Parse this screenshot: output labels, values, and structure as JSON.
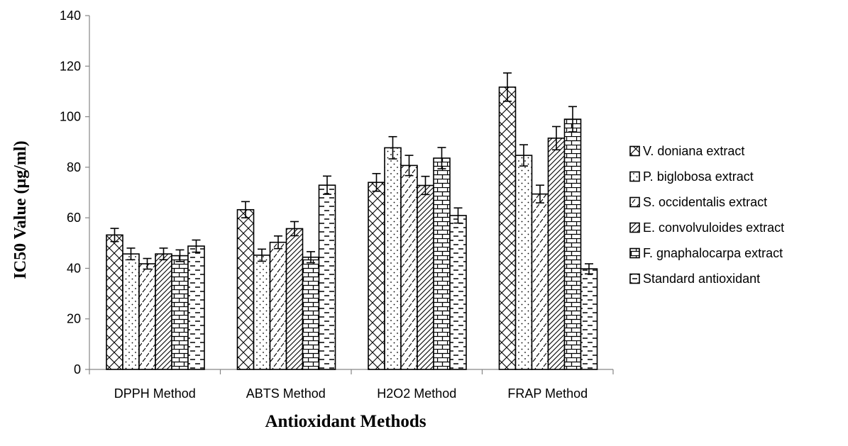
{
  "chart_data": {
    "type": "bar",
    "title": "",
    "xlabel": "Antioxidant Methods",
    "ylabel": "IC50 Value (µg/ml)",
    "ylim": [
      0,
      140
    ],
    "yticks": [
      0,
      20,
      40,
      60,
      80,
      100,
      120,
      140
    ],
    "categories": [
      "DPPH Method",
      "ABTS Method",
      "H2O2  Method",
      "FRAP Method"
    ],
    "series": [
      {
        "name": "V. doniana extract",
        "pattern": "crosshatch",
        "values": [
          53.2,
          63.2,
          74.0,
          111.7
        ],
        "errors": [
          2.6,
          3.2,
          3.5,
          5.6
        ]
      },
      {
        "name": "P. biglobosa extract",
        "pattern": "dots",
        "values": [
          45.7,
          45.2,
          87.7,
          84.7
        ],
        "errors": [
          2.3,
          2.4,
          4.4,
          4.2
        ]
      },
      {
        "name": "S. occidentalis extract",
        "pattern": "dashed-diagonal",
        "values": [
          41.8,
          50.3,
          80.7,
          69.4
        ],
        "errors": [
          2.1,
          2.5,
          4.0,
          3.5
        ]
      },
      {
        "name": "E. convolvuloides extract",
        "pattern": "diagonal",
        "values": [
          45.7,
          55.7,
          72.8,
          91.5
        ],
        "errors": [
          2.3,
          2.8,
          3.6,
          4.6
        ]
      },
      {
        "name": "F. gnaphalocarpa extract",
        "pattern": "brick",
        "values": [
          45.0,
          44.4,
          83.6,
          99.0
        ],
        "errors": [
          2.3,
          2.2,
          4.2,
          5.0
        ]
      },
      {
        "name": "Standard antioxidant",
        "pattern": "horizontal-dash",
        "values": [
          48.8,
          72.9,
          60.9,
          39.8
        ],
        "errors": [
          2.4,
          3.6,
          3.0,
          2.0
        ]
      }
    ],
    "legend_position": "right",
    "grid": false,
    "error_bars": true
  }
}
